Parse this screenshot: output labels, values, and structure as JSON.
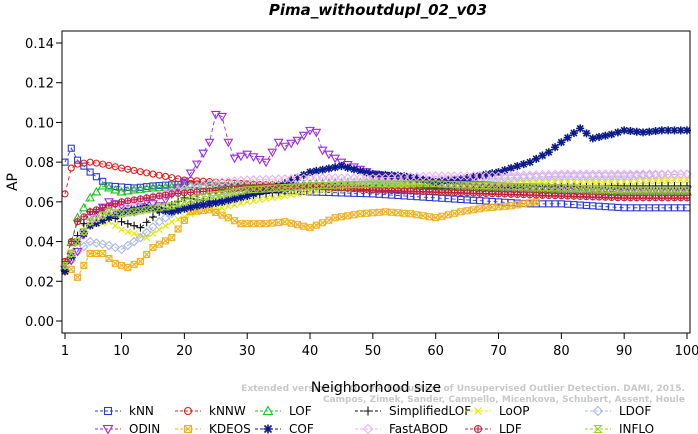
{
  "chart_data": {
    "type": "line",
    "title": "Pima_withoutdupl_02_v03",
    "xlabel": "Neighborhood size",
    "ylabel": "AP",
    "xlim": [
      1,
      100
    ],
    "ylim": [
      0.0,
      0.14
    ],
    "x_ticks": [
      "1",
      "10",
      "20",
      "30",
      "40",
      "50",
      "60",
      "70",
      "80",
      "90",
      "100"
    ],
    "y_ticks": [
      "0.00",
      "0.02",
      "0.04",
      "0.06",
      "0.08",
      "0.10",
      "0.12",
      "0.14"
    ],
    "grid": false,
    "legend_position": "bottom",
    "watermark": [
      "Extended version of: On the Evaluation of Unsupervised Outlier Detection. DAMI, 2015.",
      "Campos, Zimek, Sander, Campello, Micenkova, Schubert, Assent, Houle"
    ],
    "series": [
      {
        "name": "kNN",
        "color": "#2a3ad6",
        "marker": "square",
        "points": [
          [
            1,
            0.08
          ],
          [
            2,
            0.087
          ],
          [
            3,
            0.081
          ],
          [
            5,
            0.075
          ],
          [
            8,
            0.068
          ],
          [
            12,
            0.067
          ],
          [
            15,
            0.068
          ],
          [
            20,
            0.069
          ],
          [
            25,
            0.068
          ],
          [
            30,
            0.067
          ],
          [
            40,
            0.065
          ],
          [
            50,
            0.064
          ],
          [
            60,
            0.062
          ],
          [
            70,
            0.06
          ],
          [
            75,
            0.059
          ],
          [
            80,
            0.059
          ],
          [
            90,
            0.057
          ],
          [
            100,
            0.057
          ]
        ]
      },
      {
        "name": "kNNW",
        "color": "#e01b1b",
        "marker": "circle",
        "points": [
          [
            1,
            0.064
          ],
          [
            2,
            0.077
          ],
          [
            3,
            0.079
          ],
          [
            5,
            0.08
          ],
          [
            7,
            0.079
          ],
          [
            10,
            0.077
          ],
          [
            15,
            0.074
          ],
          [
            20,
            0.071
          ],
          [
            30,
            0.069
          ],
          [
            40,
            0.068
          ],
          [
            50,
            0.067
          ],
          [
            60,
            0.066
          ],
          [
            70,
            0.065
          ],
          [
            80,
            0.064
          ],
          [
            90,
            0.063
          ],
          [
            100,
            0.063
          ]
        ]
      },
      {
        "name": "LOF",
        "color": "#1ec41e",
        "marker": "triangle-up",
        "points": [
          [
            1,
            0.027
          ],
          [
            3,
            0.052
          ],
          [
            5,
            0.062
          ],
          [
            7,
            0.068
          ],
          [
            10,
            0.065
          ],
          [
            12,
            0.066
          ],
          [
            15,
            0.067
          ],
          [
            20,
            0.068
          ],
          [
            30,
            0.068
          ],
          [
            40,
            0.069
          ],
          [
            50,
            0.07
          ],
          [
            60,
            0.068
          ],
          [
            70,
            0.067
          ],
          [
            80,
            0.066
          ],
          [
            90,
            0.065
          ],
          [
            100,
            0.065
          ]
        ]
      },
      {
        "name": "SimplifiedLOF",
        "color": "#111111",
        "marker": "plus",
        "points": [
          [
            1,
            0.025
          ],
          [
            3,
            0.043
          ],
          [
            5,
            0.055
          ],
          [
            7,
            0.055
          ],
          [
            10,
            0.05
          ],
          [
            13,
            0.047
          ],
          [
            16,
            0.055
          ],
          [
            20,
            0.062
          ],
          [
            25,
            0.06
          ],
          [
            30,
            0.063
          ],
          [
            40,
            0.067
          ],
          [
            50,
            0.068
          ],
          [
            60,
            0.067
          ],
          [
            70,
            0.067
          ],
          [
            80,
            0.068
          ],
          [
            90,
            0.068
          ],
          [
            100,
            0.068
          ]
        ]
      },
      {
        "name": "LoOP",
        "color": "#e6e600",
        "marker": "x",
        "points": [
          [
            1,
            0.03
          ],
          [
            3,
            0.04
          ],
          [
            5,
            0.048
          ],
          [
            8,
            0.05
          ],
          [
            10,
            0.046
          ],
          [
            14,
            0.042
          ],
          [
            18,
            0.05
          ],
          [
            22,
            0.055
          ],
          [
            26,
            0.057
          ],
          [
            30,
            0.06
          ],
          [
            40,
            0.065
          ],
          [
            50,
            0.068
          ],
          [
            60,
            0.069
          ],
          [
            70,
            0.069
          ],
          [
            80,
            0.07
          ],
          [
            90,
            0.07
          ],
          [
            100,
            0.071
          ]
        ]
      },
      {
        "name": "LDOF",
        "color": "#a8b8e8",
        "marker": "diamond",
        "points": [
          [
            1,
            0.026
          ],
          [
            3,
            0.035
          ],
          [
            5,
            0.04
          ],
          [
            8,
            0.038
          ],
          [
            10,
            0.036
          ],
          [
            13,
            0.042
          ],
          [
            16,
            0.05
          ],
          [
            20,
            0.058
          ],
          [
            25,
            0.062
          ],
          [
            30,
            0.066
          ],
          [
            40,
            0.068
          ],
          [
            50,
            0.07
          ],
          [
            60,
            0.071
          ],
          [
            70,
            0.072
          ],
          [
            80,
            0.073
          ],
          [
            90,
            0.073
          ],
          [
            100,
            0.074
          ]
        ]
      },
      {
        "name": "ODIN",
        "color": "#9a2be0",
        "marker": "triangle-down",
        "points": [
          [
            1,
            0.026
          ],
          [
            3,
            0.035
          ],
          [
            5,
            0.052
          ],
          [
            8,
            0.06
          ],
          [
            10,
            0.058
          ],
          [
            12,
            0.055
          ],
          [
            14,
            0.06
          ],
          [
            16,
            0.058
          ],
          [
            18,
            0.064
          ],
          [
            20,
            0.07
          ],
          [
            22,
            0.079
          ],
          [
            24,
            0.09
          ],
          [
            25,
            0.104
          ],
          [
            26,
            0.103
          ],
          [
            27,
            0.09
          ],
          [
            28,
            0.082
          ],
          [
            30,
            0.084
          ],
          [
            33,
            0.08
          ],
          [
            35,
            0.09
          ],
          [
            36,
            0.088
          ],
          [
            38,
            0.091
          ],
          [
            40,
            0.096
          ],
          [
            41,
            0.095
          ],
          [
            42,
            0.086
          ],
          [
            45,
            0.08
          ],
          [
            50,
            0.074
          ],
          [
            60,
            0.07
          ],
          [
            70,
            0.068
          ],
          [
            80,
            0.067
          ],
          [
            90,
            0.066
          ],
          [
            100,
            0.066
          ]
        ]
      },
      {
        "name": "KDEOS",
        "color": "#f0b020",
        "marker": "square-x",
        "points": [
          [
            1,
            0.025
          ],
          [
            2,
            0.026
          ],
          [
            3,
            0.022
          ],
          [
            5,
            0.034
          ],
          [
            7,
            0.034
          ],
          [
            9,
            0.029
          ],
          [
            11,
            0.027
          ],
          [
            13,
            0.03
          ],
          [
            15,
            0.037
          ],
          [
            18,
            0.042
          ],
          [
            21,
            0.055
          ],
          [
            24,
            0.056
          ],
          [
            27,
            0.052
          ],
          [
            29,
            0.049
          ],
          [
            33,
            0.049
          ],
          [
            36,
            0.05
          ],
          [
            40,
            0.047
          ],
          [
            44,
            0.052
          ],
          [
            48,
            0.054
          ],
          [
            52,
            0.055
          ],
          [
            56,
            0.054
          ],
          [
            60,
            0.052
          ],
          [
            64,
            0.055
          ],
          [
            68,
            0.057
          ],
          [
            72,
            0.058
          ],
          [
            76,
            0.06
          ]
        ]
      },
      {
        "name": "COF",
        "color": "#0a1a8a",
        "marker": "asterisk",
        "points": [
          [
            1,
            0.025
          ],
          [
            3,
            0.04
          ],
          [
            5,
            0.048
          ],
          [
            8,
            0.052
          ],
          [
            10,
            0.055
          ],
          [
            14,
            0.057
          ],
          [
            18,
            0.055
          ],
          [
            22,
            0.058
          ],
          [
            26,
            0.06
          ],
          [
            30,
            0.063
          ],
          [
            35,
            0.068
          ],
          [
            40,
            0.075
          ],
          [
            45,
            0.078
          ],
          [
            50,
            0.074
          ],
          [
            55,
            0.073
          ],
          [
            60,
            0.07
          ],
          [
            65,
            0.072
          ],
          [
            70,
            0.075
          ],
          [
            75,
            0.08
          ],
          [
            78,
            0.085
          ],
          [
            80,
            0.09
          ],
          [
            83,
            0.097
          ],
          [
            85,
            0.092
          ],
          [
            88,
            0.094
          ],
          [
            90,
            0.096
          ],
          [
            93,
            0.095
          ],
          [
            96,
            0.096
          ],
          [
            100,
            0.096
          ]
        ]
      },
      {
        "name": "FastABOD",
        "color": "#f0b0f0",
        "marker": "diamond",
        "points": [
          [
            1,
            0.028
          ],
          [
            3,
            0.04
          ],
          [
            5,
            0.05
          ],
          [
            8,
            0.055
          ],
          [
            10,
            0.058
          ],
          [
            14,
            0.062
          ],
          [
            18,
            0.065
          ],
          [
            22,
            0.068
          ],
          [
            26,
            0.07
          ],
          [
            30,
            0.071
          ],
          [
            40,
            0.072
          ],
          [
            50,
            0.072
          ],
          [
            60,
            0.073
          ],
          [
            70,
            0.073
          ],
          [
            80,
            0.074
          ],
          [
            90,
            0.074
          ],
          [
            100,
            0.074
          ]
        ]
      },
      {
        "name": "LDF",
        "color": "#c02040",
        "marker": "circle-plus",
        "points": [
          [
            1,
            0.03
          ],
          [
            3,
            0.05
          ],
          [
            5,
            0.055
          ],
          [
            8,
            0.058
          ],
          [
            10,
            0.06
          ],
          [
            14,
            0.062
          ],
          [
            18,
            0.064
          ],
          [
            22,
            0.065
          ],
          [
            26,
            0.066
          ],
          [
            30,
            0.067
          ],
          [
            40,
            0.068
          ],
          [
            50,
            0.066
          ],
          [
            60,
            0.065
          ],
          [
            70,
            0.064
          ],
          [
            80,
            0.063
          ],
          [
            90,
            0.062
          ],
          [
            100,
            0.062
          ]
        ]
      },
      {
        "name": "INFLO",
        "color": "#9acd32",
        "marker": "hourglass",
        "points": [
          [
            1,
            0.028
          ],
          [
            3,
            0.04
          ],
          [
            5,
            0.05
          ],
          [
            8,
            0.055
          ],
          [
            10,
            0.054
          ],
          [
            14,
            0.056
          ],
          [
            18,
            0.058
          ],
          [
            22,
            0.062
          ],
          [
            26,
            0.064
          ],
          [
            30,
            0.066
          ],
          [
            40,
            0.068
          ],
          [
            50,
            0.069
          ],
          [
            60,
            0.069
          ],
          [
            70,
            0.068
          ],
          [
            80,
            0.067
          ],
          [
            90,
            0.066
          ],
          [
            100,
            0.066
          ]
        ]
      }
    ]
  }
}
